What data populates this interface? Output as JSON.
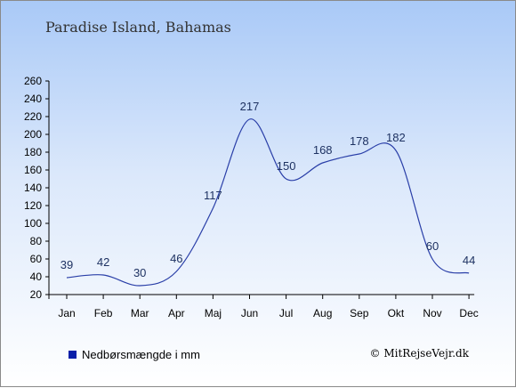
{
  "title": "Paradise Island, Bahamas",
  "legend": {
    "label": "Nedbørsmængde i mm",
    "color": "#0a1fa8"
  },
  "credit": "© MitRejseVejr.dk",
  "chart_data": {
    "type": "line",
    "categories": [
      "Jan",
      "Feb",
      "Mar",
      "Apr",
      "Maj",
      "Jun",
      "Jul",
      "Aug",
      "Sep",
      "Okt",
      "Nov",
      "Dec"
    ],
    "series": [
      {
        "name": "Nedbørsmængde i mm",
        "values": [
          39,
          42,
          30,
          46,
          117,
          217,
          150,
          168,
          178,
          182,
          60,
          44
        ],
        "color": "#2a3fa8"
      }
    ],
    "ylim": [
      20,
      260
    ],
    "yticks": [
      20,
      40,
      60,
      80,
      100,
      120,
      140,
      160,
      180,
      200,
      220,
      240,
      260
    ],
    "legend_position": "bottom-left",
    "grid": false
  }
}
